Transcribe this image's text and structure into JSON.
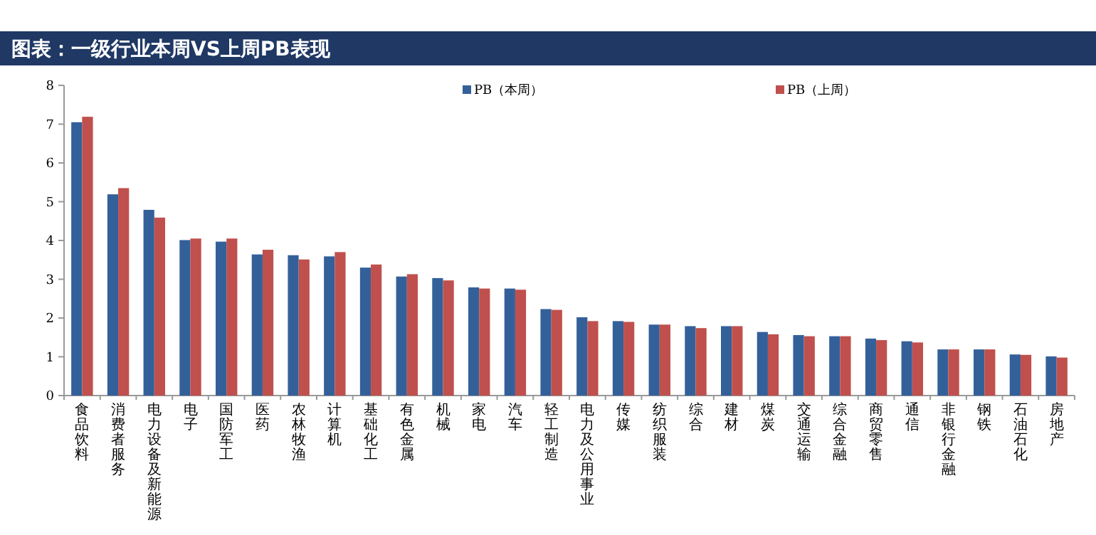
{
  "chart_data": {
    "type": "bar",
    "title": "图表：一级行业本周VS上周PB表现",
    "categories": [
      "食品饮料",
      "消费者服务",
      "电力设备及新能源",
      "电子",
      "国防军工",
      "医药",
      "农林牧渔",
      "计算机",
      "基础化工",
      "有色金属",
      "机械",
      "家电",
      "汽车",
      "轻工制造",
      "电力及公用事业",
      "传媒",
      "纺织服装",
      "综合",
      "建材",
      "煤炭",
      "交通运输",
      "综合金融",
      "商贸零售",
      "通信",
      "非银行金融",
      "钢铁",
      "石油石化",
      "房地产"
    ],
    "series": [
      {
        "name": "PB（本周）",
        "color": "#34609a",
        "values": [
          7.05,
          5.19,
          4.79,
          4.01,
          3.97,
          3.64,
          3.62,
          3.59,
          3.3,
          3.07,
          3.03,
          2.79,
          2.76,
          2.23,
          2.02,
          1.92,
          1.83,
          1.79,
          1.79,
          1.64,
          1.56,
          1.53,
          1.47,
          1.4,
          1.19,
          1.19,
          1.06,
          1.01
        ]
      },
      {
        "name": "PB（上周）",
        "color": "#c0504d",
        "values": [
          7.19,
          5.35,
          4.59,
          4.05,
          4.05,
          3.76,
          3.51,
          3.7,
          3.38,
          3.13,
          2.97,
          2.76,
          2.73,
          2.21,
          1.92,
          1.9,
          1.83,
          1.74,
          1.79,
          1.58,
          1.53,
          1.53,
          1.43,
          1.37,
          1.19,
          1.19,
          1.05,
          0.98
        ]
      }
    ],
    "ylim": [
      0,
      8
    ],
    "yticks": [
      0,
      1,
      2,
      3,
      4,
      5,
      6,
      7,
      8
    ],
    "grid": false,
    "legend": "top"
  }
}
